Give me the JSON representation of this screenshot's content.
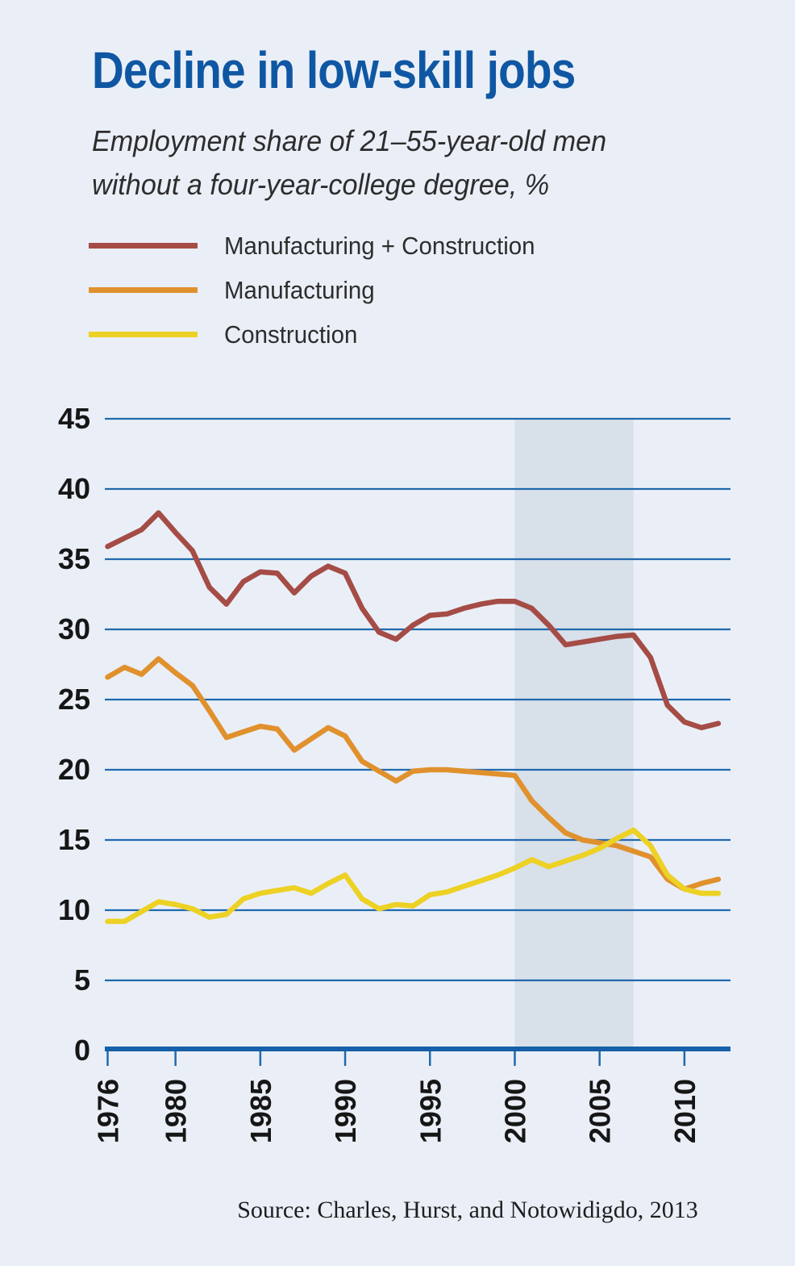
{
  "colors": {
    "background": "#eaeff7",
    "band": "#d8e0ea",
    "gridline": "#2069ae",
    "axis": "#1560a8",
    "title": "#0f57a3",
    "text": "#2d2d2d",
    "tick_label": "#161616",
    "source_text": "#1e1e1e"
  },
  "chart_data": {
    "type": "line",
    "title": "Decline in low-skill jobs",
    "subtitle": "Employment share of 21–55-year-old men\nwithout a four-year-college degree, %",
    "source": "Source: Charles, Hurst, and Notowidigdo, 2013",
    "xlabel": "",
    "ylabel": "",
    "grid": true,
    "legend_position": "top-left",
    "ylim": [
      0,
      45
    ],
    "yticks": [
      0,
      5,
      10,
      15,
      20,
      25,
      30,
      35,
      40,
      45
    ],
    "xticks": [
      1976,
      1980,
      1985,
      1990,
      1995,
      2000,
      2005,
      2010
    ],
    "shaded_band": {
      "from_year": 2000,
      "to_year": 2007
    },
    "x": [
      1976,
      1977,
      1978,
      1979,
      1980,
      1981,
      1982,
      1983,
      1984,
      1985,
      1986,
      1987,
      1988,
      1989,
      1990,
      1991,
      1992,
      1993,
      1994,
      1995,
      1996,
      1997,
      1998,
      1999,
      2000,
      2001,
      2002,
      2003,
      2004,
      2005,
      2006,
      2007,
      2008,
      2009,
      2010,
      2011,
      2012
    ],
    "series": [
      {
        "name": "Manufacturing + Construction",
        "color": "#a54c46",
        "values": [
          35.9,
          36.5,
          37.1,
          38.3,
          36.9,
          35.6,
          33.0,
          31.8,
          33.4,
          34.1,
          34.0,
          32.6,
          33.8,
          34.5,
          34.0,
          31.5,
          29.8,
          29.3,
          30.3,
          31.0,
          31.1,
          31.5,
          31.8,
          32.0,
          32.0,
          31.5,
          30.3,
          28.9,
          29.1,
          29.3,
          29.5,
          29.6,
          28.0,
          24.6,
          23.4,
          23.0,
          23.3
        ]
      },
      {
        "name": "Manufacturing",
        "color": "#e0912d",
        "values": [
          26.6,
          27.3,
          26.8,
          27.9,
          26.9,
          26.0,
          24.2,
          22.3,
          22.7,
          23.1,
          22.9,
          21.4,
          22.2,
          23.0,
          22.4,
          20.6,
          19.9,
          19.2,
          19.9,
          20.0,
          20.0,
          19.9,
          19.8,
          19.7,
          19.6,
          17.8,
          16.6,
          15.5,
          15.0,
          14.8,
          14.6,
          14.2,
          13.8,
          12.2,
          11.5,
          11.9,
          12.2
        ]
      },
      {
        "name": "Construction",
        "color": "#edd124",
        "values": [
          9.2,
          9.2,
          9.9,
          10.6,
          10.4,
          10.1,
          9.5,
          9.7,
          10.8,
          11.2,
          11.4,
          11.6,
          11.2,
          11.9,
          12.5,
          10.8,
          10.1,
          10.4,
          10.3,
          11.1,
          11.3,
          11.7,
          12.1,
          12.5,
          13.0,
          13.6,
          13.1,
          13.5,
          13.9,
          14.4,
          15.1,
          15.7,
          14.6,
          12.5,
          11.5,
          11.2,
          11.2
        ]
      }
    ]
  }
}
